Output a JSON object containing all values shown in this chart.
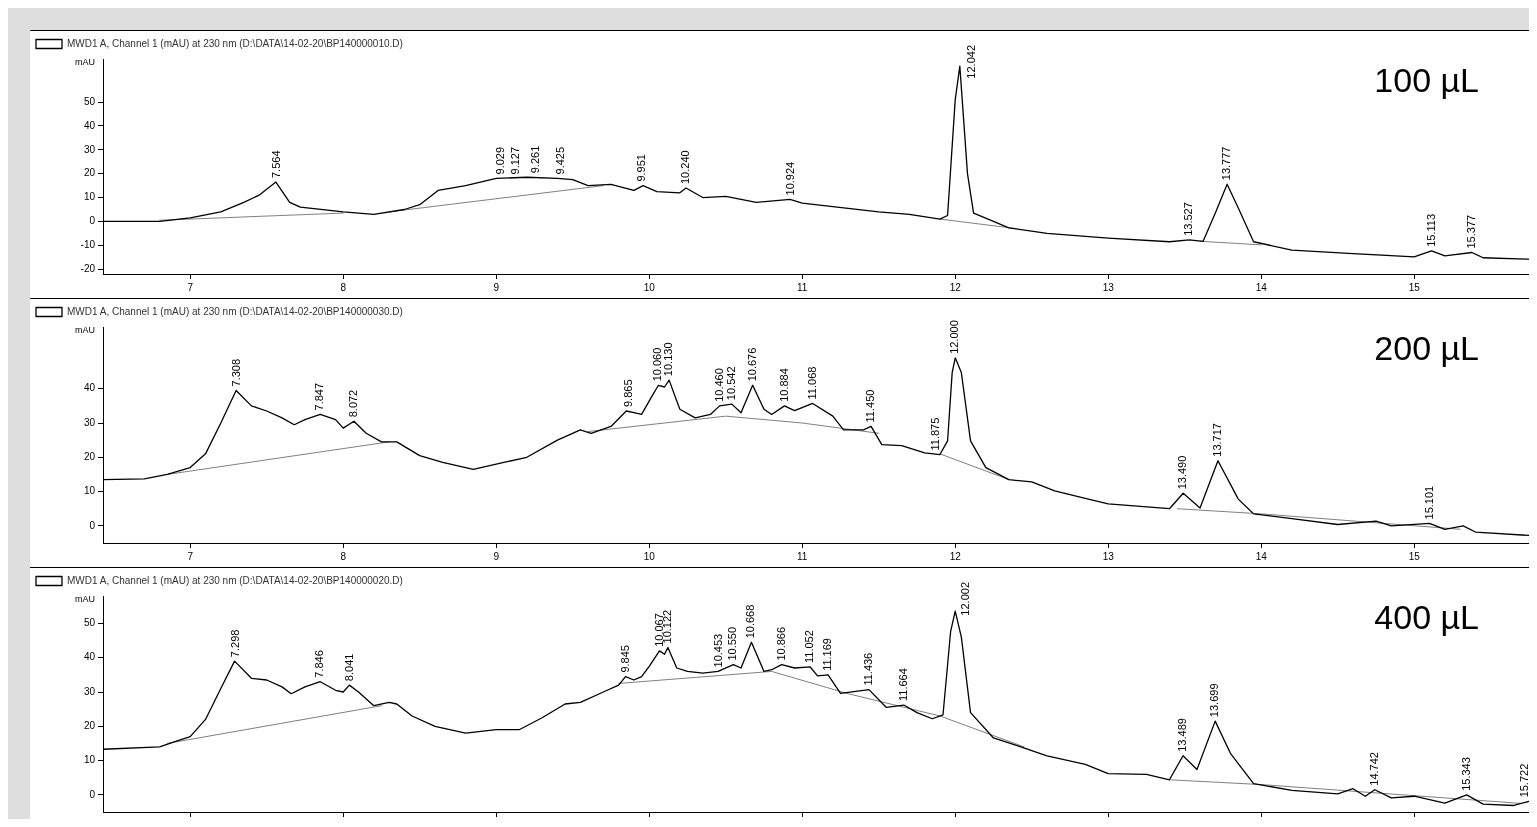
{
  "chart_data": [
    {
      "type": "line",
      "ylabel": "mAU",
      "legend": "top left",
      "xlim": [
        6.43,
        15.75
      ],
      "xticks": [
        7,
        8,
        9,
        10,
        11,
        12,
        13,
        14,
        15
      ],
      "ylim": [
        -22,
        68
      ],
      "yticks": [
        -20,
        -10,
        0,
        10,
        20,
        30,
        40,
        50
      ],
      "series": [
        {
          "name": "MWD1 A, Channel 1 (mAU) at 230 nm (D:\\DATA\\14-02-20\\BP140000010.D)",
          "color": "#000000",
          "x": [
            6.43,
            6.8,
            7.0,
            7.2,
            7.35,
            7.45,
            7.56,
            7.65,
            7.72,
            8.0,
            8.2,
            8.4,
            8.5,
            8.62,
            8.8,
            9.0,
            9.2,
            9.4,
            9.5,
            9.6,
            9.75,
            9.9,
            9.96,
            10.05,
            10.2,
            10.24,
            10.35,
            10.5,
            10.7,
            10.92,
            11.0,
            11.5,
            11.7,
            11.9,
            11.95,
            12.0,
            12.03,
            12.08,
            12.12,
            12.25,
            12.35,
            12.6,
            13.0,
            13.4,
            13.53,
            13.62,
            13.7,
            13.777,
            13.85,
            13.95,
            14.2,
            14.6,
            15.0,
            15.113,
            15.2,
            15.377,
            15.45,
            15.75
          ],
          "values": [
            0,
            0,
            1.5,
            4,
            8,
            11,
            16.5,
            8,
            6,
            4,
            3,
            5,
            7,
            13,
            15,
            18,
            18.5,
            18,
            17.5,
            15,
            15.5,
            13,
            15,
            12.5,
            12,
            14,
            10,
            10.5,
            8,
            9.2,
            7.7,
            4,
            3,
            1,
            2.5,
            51,
            65,
            20,
            3.5,
            0,
            -2.7,
            -5,
            -7,
            -8.5,
            -7.7,
            -8.3,
            3.5,
            15.6,
            5.6,
            -8.5,
            -12,
            -13.5,
            -14.8,
            -12.3,
            -14.4,
            -13,
            -15.2,
            -15.8
          ]
        },
        {
          "color": "#808080",
          "x": [
            6.8,
            8.0
          ],
          "values": [
            0.5,
            3.5
          ]
        },
        {
          "color": "#808080",
          "x": [
            8.3,
            9.7
          ],
          "values": [
            4,
            15
          ]
        },
        {
          "color": "#808080",
          "x": [
            11.9,
            12.4
          ],
          "values": [
            1,
            -3
          ]
        },
        {
          "color": "#808080",
          "x": [
            13.6,
            14.0
          ],
          "values": [
            -8.3,
            -9.8
          ]
        }
      ],
      "annotations": [
        "100 µL",
        {
          "text": "7.564",
          "x": 7.564,
          "y": 16.5
        },
        {
          "text": "9.029",
          "x": 9.029,
          "y": 18
        },
        {
          "text": "9.127",
          "x": 9.127,
          "y": 18
        },
        {
          "text": "9.261",
          "x": 9.261,
          "y": 18.5
        },
        {
          "text": "9.425",
          "x": 9.425,
          "y": 18
        },
        {
          "text": "9.951",
          "x": 9.951,
          "y": 15
        },
        {
          "text": "10.240",
          "x": 10.24,
          "y": 14
        },
        {
          "text": "10.924",
          "x": 10.924,
          "y": 9.2
        },
        {
          "text": "12.042",
          "x": 12.042,
          "y": 65
        },
        {
          "text": "13.527",
          "x": 13.527,
          "y": -7.7
        },
        {
          "text": "13.777",
          "x": 13.777,
          "y": 15.6
        },
        {
          "text": "15.113",
          "x": 15.113,
          "y": -12.3
        },
        {
          "text": "15.377",
          "x": 15.377,
          "y": -13
        }
      ]
    },
    {
      "type": "line",
      "ylabel": "mAU",
      "legend": "top left",
      "xlim": [
        6.43,
        15.75
      ],
      "xticks": [
        7,
        8,
        9,
        10,
        11,
        12,
        13,
        14,
        15
      ],
      "ylim": [
        -5,
        58
      ],
      "yticks": [
        0,
        10,
        20,
        30,
        40
      ],
      "series": [
        {
          "name": "MWD1 A, Channel 1 (mAU) at 230 nm (D:\\DATA\\14-02-20\\BP140000030.D)",
          "color": "#000000",
          "x": [
            6.43,
            6.7,
            6.85,
            7.0,
            7.1,
            7.2,
            7.3,
            7.4,
            7.5,
            7.6,
            7.68,
            7.75,
            7.85,
            7.95,
            8.0,
            8.07,
            8.15,
            8.25,
            8.35,
            8.5,
            8.65,
            8.85,
            9.05,
            9.2,
            9.4,
            9.55,
            9.62,
            9.75,
            9.85,
            9.9,
            9.95,
            10.02,
            10.06,
            10.1,
            10.13,
            10.2,
            10.3,
            10.4,
            10.46,
            10.54,
            10.6,
            10.676,
            10.75,
            10.8,
            10.884,
            10.95,
            11.068,
            11.2,
            11.27,
            11.4,
            11.45,
            11.52,
            11.65,
            11.8,
            11.9,
            11.95,
            11.98,
            12.0,
            12.04,
            12.1,
            12.2,
            12.35,
            12.5,
            12.65,
            12.85,
            13.0,
            13.4,
            13.49,
            13.6,
            13.717,
            13.85,
            13.95,
            14.2,
            14.5,
            14.75,
            14.85,
            15.1,
            15.2,
            15.32,
            15.4,
            15.75
          ],
          "values": [
            13.5,
            13.7,
            15,
            17,
            21,
            30,
            39.5,
            35,
            33.5,
            31.5,
            29.5,
            31,
            32.5,
            31,
            28.5,
            30.5,
            27,
            24.5,
            24.5,
            20.5,
            18.5,
            16.5,
            18.5,
            20,
            25,
            28,
            27,
            29,
            33.5,
            33,
            32.5,
            38,
            41,
            40.5,
            42.5,
            34,
            31.5,
            32.5,
            35,
            35.5,
            33,
            41,
            34,
            32.5,
            35,
            33.6,
            35.7,
            32,
            28,
            28,
            29,
            23.7,
            23.4,
            21.3,
            20.8,
            24.8,
            44.7,
            49,
            44.7,
            24.8,
            17,
            13.5,
            12.8,
            10.2,
            8,
            6.4,
            5,
            9.5,
            5.2,
            19,
            7.8,
            3.5,
            2.1,
            0.4,
            1.4,
            0,
            0.7,
            -1,
            0,
            -1.8,
            -2.8
          ]
        },
        {
          "color": "#808080",
          "x": [
            6.85,
            8.3
          ],
          "values": [
            15,
            24.5
          ]
        },
        {
          "color": "#808080",
          "x": [
            9.6,
            10.5,
            11.0,
            11.5
          ],
          "values": [
            27.5,
            32,
            30,
            27
          ]
        },
        {
          "color": "#808080",
          "x": [
            11.9,
            12.35
          ],
          "values": [
            21,
            13.5
          ]
        },
        {
          "color": "#808080",
          "x": [
            13.45,
            14.0,
            15.3
          ],
          "values": [
            5,
            3.5,
            -1
          ]
        }
      ],
      "annotations": [
        "200 µL",
        {
          "text": "7.308",
          "x": 7.308,
          "y": 39.5
        },
        {
          "text": "7.847",
          "x": 7.847,
          "y": 32.5
        },
        {
          "text": "8.072",
          "x": 8.072,
          "y": 30.5
        },
        {
          "text": "9.865",
          "x": 9.865,
          "y": 33.5
        },
        {
          "text": "10.060",
          "x": 10.06,
          "y": 41
        },
        {
          "text": "10.130",
          "x": 10.13,
          "y": 42.5
        },
        {
          "text": "10.460",
          "x": 10.46,
          "y": 35
        },
        {
          "text": "10.542",
          "x": 10.542,
          "y": 35.5
        },
        {
          "text": "10.676",
          "x": 10.676,
          "y": 41
        },
        {
          "text": "10.884",
          "x": 10.884,
          "y": 35
        },
        {
          "text": "11.068",
          "x": 11.068,
          "y": 35.7
        },
        {
          "text": "11.450",
          "x": 11.45,
          "y": 29
        },
        {
          "text": "11.875",
          "x": 11.875,
          "y": 20.8
        },
        {
          "text": "12.000",
          "x": 12.0,
          "y": 49
        },
        {
          "text": "13.490",
          "x": 13.49,
          "y": 9.5
        },
        {
          "text": "13.717",
          "x": 13.717,
          "y": 19
        },
        {
          "text": "15.101",
          "x": 15.101,
          "y": 0.7
        }
      ]
    },
    {
      "type": "line",
      "ylabel": "mAU",
      "legend": "top left",
      "tick_labels": "y",
      "xlim": [
        6.43,
        15.75
      ],
      "xticks": [
        7,
        8,
        9,
        10,
        11,
        12,
        13,
        14,
        15
      ],
      "ylim": [
        -5,
        58
      ],
      "yticks": [
        0,
        10,
        20,
        30,
        40,
        50
      ],
      "series": [
        {
          "name": "MWD1 A, Channel 1 (mAU) at 230 nm (D:\\DATA\\14-02-20\\BP140000020.D)",
          "color": "#000000",
          "x": [
            6.43,
            6.8,
            6.9,
            7.0,
            7.1,
            7.2,
            7.29,
            7.4,
            7.5,
            7.6,
            7.66,
            7.75,
            7.85,
            7.95,
            8.0,
            8.04,
            8.1,
            8.2,
            8.3,
            8.35,
            8.45,
            8.6,
            8.8,
            9.0,
            9.15,
            9.3,
            9.45,
            9.55,
            9.7,
            9.8,
            9.845,
            9.9,
            9.95,
            10.0,
            10.067,
            10.1,
            10.122,
            10.18,
            10.25,
            10.35,
            10.45,
            10.55,
            10.6,
            10.668,
            10.75,
            10.8,
            10.866,
            10.95,
            11.052,
            11.1,
            11.169,
            11.25,
            11.35,
            11.436,
            11.55,
            11.664,
            11.75,
            11.85,
            11.92,
            11.97,
            12.0,
            12.04,
            12.1,
            12.25,
            12.4,
            12.6,
            12.85,
            13.0,
            13.25,
            13.4,
            13.489,
            13.58,
            13.699,
            13.8,
            13.95,
            14.2,
            14.5,
            14.6,
            14.68,
            14.742,
            14.85,
            15.0,
            15.2,
            15.343,
            15.45,
            15.65,
            15.75
          ],
          "values": [
            13.3,
            14,
            15.5,
            17,
            22,
            31,
            39,
            34,
            33.5,
            31.5,
            29.5,
            31.5,
            33,
            30.5,
            30,
            32,
            30,
            26,
            27,
            26.5,
            23,
            20,
            18,
            19,
            19,
            22.5,
            26.5,
            27,
            30,
            32,
            34.5,
            33.5,
            34.5,
            37.5,
            42,
            41,
            43,
            37,
            36,
            35.5,
            36,
            38,
            37,
            44.5,
            36,
            36.5,
            38,
            37,
            37.3,
            34.7,
            35,
            29.6,
            30.2,
            30.7,
            25.5,
            26.2,
            24,
            22.2,
            23.3,
            47.7,
            53.6,
            46,
            24,
            16.6,
            14.4,
            11.4,
            8.9,
            6.2,
            6,
            4.4,
            11.4,
            7.4,
            21.5,
            12,
            3.3,
            1.3,
            0.3,
            1.8,
            -0.4,
            1.5,
            -0.9,
            -0.4,
            -2.4,
            0,
            -2.7,
            -3.1,
            -1.9
          ]
        },
        {
          "color": "#808080",
          "x": [
            6.85,
            8.25
          ],
          "values": [
            15,
            26
          ]
        },
        {
          "color": "#808080",
          "x": [
            9.8,
            10.8,
            11.3,
            11.9,
            12.45
          ],
          "values": [
            32.5,
            36,
            29.5,
            23,
            14
          ]
        },
        {
          "color": "#808080",
          "x": [
            13.4,
            14.0,
            15.7
          ],
          "values": [
            4.4,
            3,
            -2.5
          ]
        }
      ],
      "annotations": [
        "400 µL",
        {
          "text": "7.298",
          "x": 7.298,
          "y": 39
        },
        {
          "text": "7.846",
          "x": 7.846,
          "y": 33
        },
        {
          "text": "8.041",
          "x": 8.041,
          "y": 32
        },
        {
          "text": "9.845",
          "x": 9.845,
          "y": 34.5
        },
        {
          "text": "10.067",
          "x": 10.067,
          "y": 42
        },
        {
          "text": "10.122",
          "x": 10.122,
          "y": 43
        },
        {
          "text": "10.453",
          "x": 10.453,
          "y": 36
        },
        {
          "text": "10.550",
          "x": 10.55,
          "y": 38
        },
        {
          "text": "10.668",
          "x": 10.668,
          "y": 44.5
        },
        {
          "text": "10.866",
          "x": 10.866,
          "y": 38
        },
        {
          "text": "11.052",
          "x": 11.052,
          "y": 37.3
        },
        {
          "text": "11.169",
          "x": 11.169,
          "y": 35
        },
        {
          "text": "11.436",
          "x": 11.436,
          "y": 30.7
        },
        {
          "text": "11.664",
          "x": 11.664,
          "y": 26.2
        },
        {
          "text": "12.002",
          "x": 12.002,
          "y": 53.6
        },
        {
          "text": "13.489",
          "x": 13.489,
          "y": 11.4
        },
        {
          "text": "13.699",
          "x": 13.699,
          "y": 21.5
        },
        {
          "text": "14.742",
          "x": 14.742,
          "y": 1.5
        },
        {
          "text": "15.343",
          "x": 15.343,
          "y": 0
        },
        {
          "text": "15.722",
          "x": 15.722,
          "y": -1.9
        }
      ]
    }
  ]
}
